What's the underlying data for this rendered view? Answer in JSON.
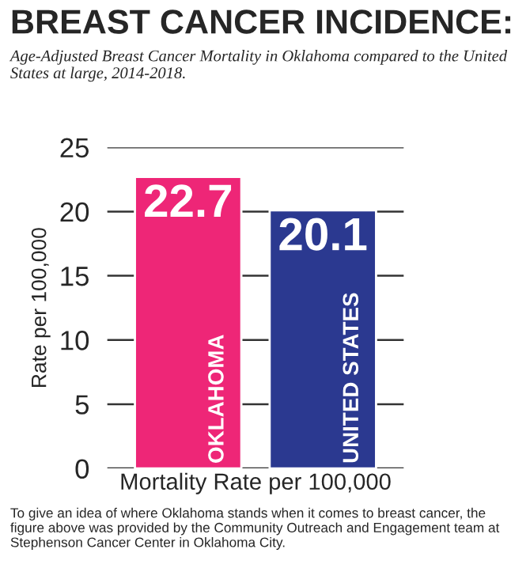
{
  "chart_data": {
    "type": "bar",
    "title": "BREAST CANCER INCIDENCE:",
    "subtitle": "Age-Adjusted Breast Cancer Mortality in Oklahoma compared to the United States at large, 2014-2018.",
    "xlabel": "Mortality Rate per 100,000",
    "ylabel": "Rate per 100,000",
    "categories": [
      "OKLAHOMA",
      "UNITED STATES"
    ],
    "values": [
      22.7,
      20.1
    ],
    "colors": [
      "#ee2677",
      "#2b3990"
    ],
    "data_labels": true,
    "ylim": [
      0,
      25
    ],
    "yticks": [
      0,
      5,
      10,
      15,
      20,
      25
    ],
    "grid": "y",
    "annotations": [
      "To give an idea of where Oklahoma stands when it comes to breast cancer, the figure above was provided by the Community Outreach and Engagement team at Stephenson Cancer Center in Oklahoma City."
    ]
  }
}
